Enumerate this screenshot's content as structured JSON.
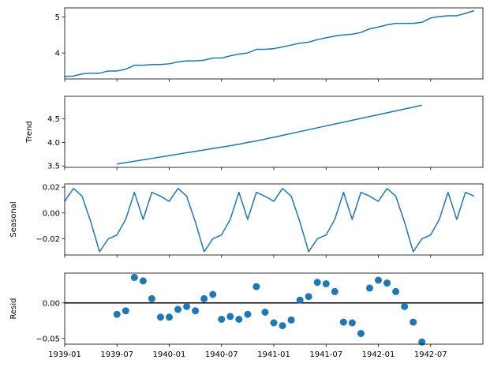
{
  "colors": {
    "series": "#1f77b4",
    "axes": "#000000",
    "zero_line": "#000000",
    "background": "#ffffff"
  },
  "x_ticks": [
    "1939-01",
    "1939-07",
    "1940-01",
    "1940-07",
    "1941-01",
    "1941-07",
    "1942-01",
    "1942-07"
  ],
  "chart_data": [
    {
      "type": "line",
      "title": "",
      "ylabel": "",
      "xlim": [
        "1939-01",
        "1943-01"
      ],
      "ylim": [
        3.28,
        5.25
      ],
      "yticks": [
        "4",
        "5"
      ],
      "ytick_values": [
        4,
        5
      ],
      "show_x_tick_labels": false,
      "series": [
        {
          "x": [
            "1939-01",
            "1939-02",
            "1939-03",
            "1939-04",
            "1939-05",
            "1939-06",
            "1939-07",
            "1939-08",
            "1939-09",
            "1939-10",
            "1939-11",
            "1939-12",
            "1940-01",
            "1940-02",
            "1940-03",
            "1940-04",
            "1940-05",
            "1940-06",
            "1940-07",
            "1940-08",
            "1940-09",
            "1940-10",
            "1940-11",
            "1940-12",
            "1941-01",
            "1941-02",
            "1941-03",
            "1941-04",
            "1941-05",
            "1941-06",
            "1941-07",
            "1941-08",
            "1941-09",
            "1941-10",
            "1941-11",
            "1941-12",
            "1942-01",
            "1942-02",
            "1942-03",
            "1942-04",
            "1942-05",
            "1942-06",
            "1942-07",
            "1942-08",
            "1942-09",
            "1942-10",
            "1942-11",
            "1942-12"
          ],
          "values": [
            3.35,
            3.36,
            3.42,
            3.44,
            3.44,
            3.5,
            3.5,
            3.55,
            3.66,
            3.66,
            3.68,
            3.68,
            3.7,
            3.75,
            3.78,
            3.78,
            3.8,
            3.86,
            3.86,
            3.92,
            3.97,
            4.0,
            4.1,
            4.1,
            4.12,
            4.17,
            4.22,
            4.27,
            4.3,
            4.37,
            4.42,
            4.47,
            4.5,
            4.52,
            4.57,
            4.67,
            4.72,
            4.78,
            4.82,
            4.82,
            4.82,
            4.85,
            4.97,
            5.01,
            5.03,
            5.03,
            5.1,
            5.17
          ]
        }
      ]
    },
    {
      "type": "line",
      "title": "",
      "ylabel": "Trend",
      "xlim": [
        "1939-01",
        "1943-01"
      ],
      "ylim": [
        3.47,
        4.98
      ],
      "yticks": [
        "3.5",
        "4.0",
        "4.5"
      ],
      "ytick_values": [
        3.5,
        4.0,
        4.5
      ],
      "show_x_tick_labels": false,
      "series": [
        {
          "x": [
            "1939-07",
            "1939-08",
            "1939-09",
            "1939-10",
            "1939-11",
            "1939-12",
            "1940-01",
            "1940-02",
            "1940-03",
            "1940-04",
            "1940-05",
            "1940-06",
            "1940-07",
            "1940-08",
            "1940-09",
            "1940-10",
            "1940-11",
            "1940-12",
            "1941-01",
            "1941-02",
            "1941-03",
            "1941-04",
            "1941-05",
            "1941-06",
            "1941-07",
            "1941-08",
            "1941-09",
            "1941-10",
            "1941-11",
            "1941-12",
            "1942-01",
            "1942-02",
            "1942-03",
            "1942-04",
            "1942-05",
            "1942-06"
          ],
          "values": [
            3.54,
            3.57,
            3.6,
            3.63,
            3.66,
            3.69,
            3.72,
            3.75,
            3.78,
            3.81,
            3.84,
            3.87,
            3.9,
            3.93,
            3.96,
            4.0,
            4.03,
            4.07,
            4.11,
            4.15,
            4.19,
            4.23,
            4.27,
            4.31,
            4.35,
            4.39,
            4.43,
            4.47,
            4.51,
            4.55,
            4.59,
            4.63,
            4.67,
            4.71,
            4.75,
            4.79
          ]
        }
      ]
    },
    {
      "type": "line",
      "title": "",
      "ylabel": "Seasonal",
      "xlim": [
        "1939-01",
        "1943-01"
      ],
      "ylim": [
        -0.0325,
        0.0225
      ],
      "yticks": [
        "0.02",
        "0.00",
        "−0.02"
      ],
      "ytick_values": [
        0.02,
        0.0,
        -0.02
      ],
      "show_x_tick_labels": false,
      "series": [
        {
          "x": [
            "1939-01",
            "1939-02",
            "1939-03",
            "1939-04",
            "1939-05",
            "1939-06",
            "1939-07",
            "1939-08",
            "1939-09",
            "1939-10",
            "1939-11",
            "1939-12",
            "1940-01",
            "1940-02",
            "1940-03",
            "1940-04",
            "1940-05",
            "1940-06",
            "1940-07",
            "1940-08",
            "1940-09",
            "1940-10",
            "1940-11",
            "1940-12",
            "1941-01",
            "1941-02",
            "1941-03",
            "1941-04",
            "1941-05",
            "1941-06",
            "1941-07",
            "1941-08",
            "1941-09",
            "1941-10",
            "1941-11",
            "1941-12",
            "1942-01",
            "1942-02",
            "1942-03",
            "1942-04",
            "1942-05",
            "1942-06",
            "1942-07",
            "1942-08",
            "1942-09",
            "1942-10",
            "1942-11",
            "1942-12"
          ],
          "values": [
            0.009,
            0.019,
            0.013,
            -0.007,
            -0.03,
            -0.02,
            -0.017,
            -0.005,
            0.016,
            -0.005,
            0.016,
            0.013,
            0.009,
            0.019,
            0.013,
            -0.007,
            -0.03,
            -0.02,
            -0.017,
            -0.005,
            0.016,
            -0.005,
            0.016,
            0.013,
            0.009,
            0.019,
            0.013,
            -0.007,
            -0.03,
            -0.02,
            -0.017,
            -0.005,
            0.016,
            -0.005,
            0.016,
            0.013,
            0.009,
            0.019,
            0.013,
            -0.007,
            -0.03,
            -0.02,
            -0.017,
            -0.005,
            0.016,
            -0.005,
            0.016,
            0.013
          ]
        }
      ]
    },
    {
      "type": "scatter",
      "title": "",
      "ylabel": "Resid",
      "xlim": [
        "1939-01",
        "1943-01"
      ],
      "ylim": [
        -0.058,
        0.042
      ],
      "yticks": [
        "0.00",
        "−0.05"
      ],
      "ytick_values": [
        0.0,
        -0.05
      ],
      "zero_line": true,
      "show_x_tick_labels": true,
      "series": [
        {
          "x": [
            "1939-07",
            "1939-08",
            "1939-09",
            "1939-10",
            "1939-11",
            "1939-12",
            "1940-01",
            "1940-02",
            "1940-03",
            "1940-04",
            "1940-05",
            "1940-06",
            "1940-07",
            "1940-08",
            "1940-09",
            "1940-10",
            "1940-11",
            "1940-12",
            "1941-01",
            "1941-02",
            "1941-03",
            "1941-04",
            "1941-05",
            "1941-06",
            "1941-07",
            "1941-08",
            "1941-09",
            "1941-10",
            "1941-11",
            "1941-12",
            "1942-01",
            "1942-02",
            "1942-03",
            "1942-04",
            "1942-05",
            "1942-06"
          ],
          "values": [
            -0.016,
            -0.011,
            0.036,
            0.031,
            0.006,
            -0.02,
            -0.02,
            -0.009,
            -0.005,
            -0.011,
            0.006,
            0.012,
            -0.023,
            -0.019,
            -0.023,
            -0.016,
            0.023,
            -0.013,
            -0.028,
            -0.032,
            -0.024,
            0.004,
            0.009,
            0.029,
            0.027,
            0.016,
            -0.027,
            -0.028,
            -0.043,
            0.021,
            0.032,
            0.028,
            0.016,
            -0.005,
            -0.027,
            -0.055
          ]
        }
      ]
    }
  ]
}
